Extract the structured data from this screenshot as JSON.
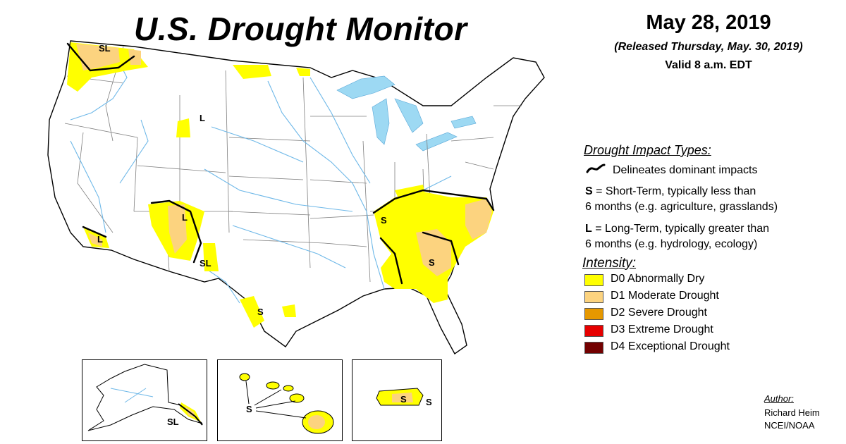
{
  "header": {
    "title": "U.S. Drought Monitor",
    "date": "May 28, 2019",
    "released": "(Released Thursday, May. 30, 2019)",
    "valid": "Valid 8 a.m. EDT"
  },
  "impact_legend": {
    "heading": "Drought Impact Types:",
    "delineates": "Delineates dominant impacts",
    "short_key": "S",
    "short_line1": " = Short-Term, typically less than",
    "short_line2": "6 months (e.g. agriculture, grasslands)",
    "long_key": "L",
    "long_line1": " = Long-Term, typically greater than",
    "long_line2": "6 months (e.g. hydrology, ecology)"
  },
  "intensity_legend": {
    "heading": "Intensity:",
    "levels": [
      {
        "label": "D0 Abnormally Dry",
        "color": "#ffff00"
      },
      {
        "label": "D1 Moderate Drought",
        "color": "#fcd37f"
      },
      {
        "label": "D2 Severe Drought",
        "color": "#e69800"
      },
      {
        "label": "D3 Extreme Drought",
        "color": "#e60000"
      },
      {
        "label": "D4 Exceptional Drought",
        "color": "#730000"
      }
    ]
  },
  "map_labels": {
    "wa": "SL",
    "wy": "L",
    "az": "L",
    "nm": "SL",
    "ca": "L",
    "tx": "S",
    "ms": "S",
    "ga": "S",
    "ak": "SL",
    "hi": "S",
    "pr1": "S",
    "pr2": "S"
  },
  "author": {
    "heading": "Author:",
    "name": "Richard Heim",
    "org": "NCEI/NOAA"
  },
  "colors": {
    "water": "#9dd9f3",
    "river": "#6eb8e8",
    "border": "#7f7f7f"
  }
}
